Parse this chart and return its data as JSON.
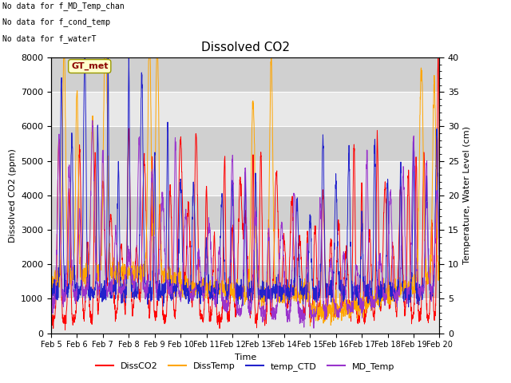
{
  "title": "Dissolved CO2",
  "xlabel": "Time",
  "ylabel_left": "Dissolved CO2 (ppm)",
  "ylabel_right": "Temperature, Water Level (cm)",
  "ylim_left": [
    0,
    8000
  ],
  "ylim_right": [
    0,
    40
  ],
  "annotations": [
    "No data for f_MD_Temp_chan",
    "No data for f_cond_temp",
    "No data for f_waterT"
  ],
  "gt_met_label": "GT_met",
  "legend_entries": [
    "DissCO2",
    "DissTemp",
    "temp_CTD",
    "MD_Temp"
  ],
  "legend_colors": [
    "#ff0000",
    "#ffa500",
    "#2222cc",
    "#9933cc"
  ],
  "line_colors": {
    "DissCO2": "#ff0000",
    "DissTemp": "#ffa500",
    "temp_CTD": "#2222cc",
    "MD_Temp": "#9933cc"
  },
  "background_color": "#dcdcdc",
  "x_tick_labels": [
    "Feb 5",
    "Feb 6",
    "Feb 7",
    "Feb 8",
    "Feb 9",
    "Feb 10",
    "Feb 11",
    "Feb 12",
    "Feb 13",
    "Feb 14",
    "Feb 15",
    "Feb 16",
    "Feb 17",
    "Feb 18",
    "Feb 19",
    "Feb 20"
  ],
  "x_tick_positions": [
    0,
    1,
    2,
    3,
    4,
    5,
    6,
    7,
    8,
    9,
    10,
    11,
    12,
    13,
    14,
    15
  ],
  "yticks_left": [
    0,
    1000,
    2000,
    3000,
    4000,
    5000,
    6000,
    7000,
    8000
  ],
  "yticks_right": [
    0,
    5,
    10,
    15,
    20,
    25,
    30,
    35,
    40
  ]
}
